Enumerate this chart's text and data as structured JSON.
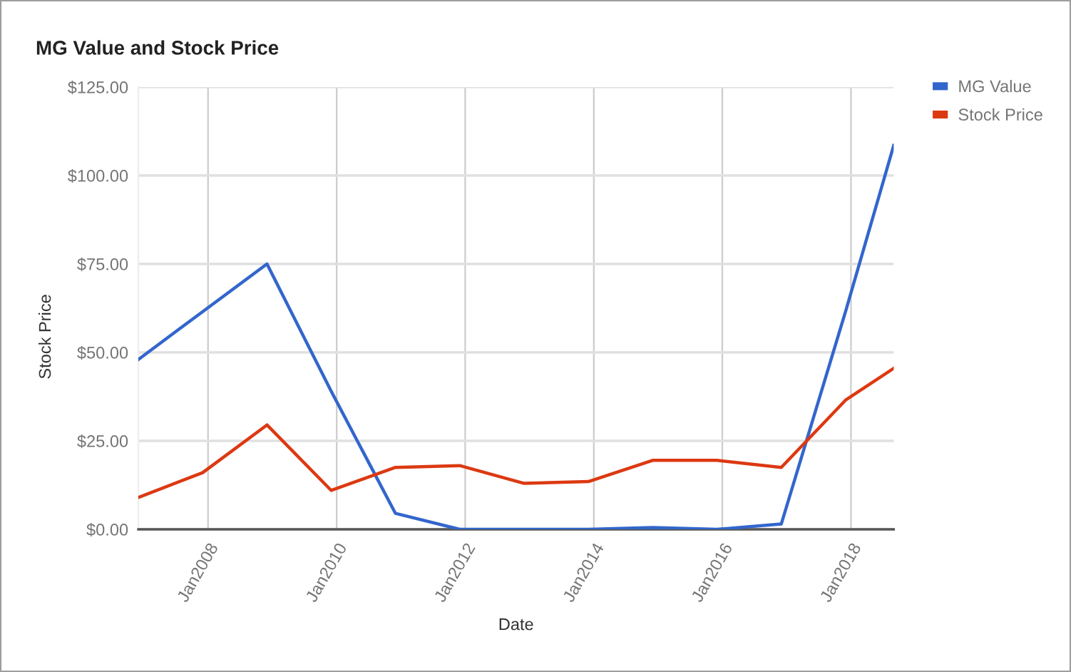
{
  "chart_data": {
    "type": "line",
    "title": "MG Value and Stock Price",
    "xlabel": "Date",
    "ylabel": "Stock Price",
    "x": [
      "2006-12",
      "2007-12",
      "2008-12",
      "2009-12",
      "2010-12",
      "2011-12",
      "2012-12",
      "2013-12",
      "2014-12",
      "2015-12",
      "2016-12",
      "2017-12",
      "2018-09"
    ],
    "series": [
      {
        "name": "MG Value",
        "color": "#3366cc",
        "values": [
          48,
          61.5,
          75,
          39,
          4.5,
          0,
          0,
          0,
          0.5,
          0,
          1.5,
          61.5,
          108.5
        ]
      },
      {
        "name": "Stock Price",
        "color": "#dc3912",
        "values": [
          9,
          16,
          29.5,
          11,
          17.5,
          18,
          13,
          13.5,
          19.5,
          19.5,
          17.5,
          36.5,
          45.5
        ]
      }
    ],
    "xlim": [
      "2006-12",
      "2018-09"
    ],
    "xticks": [
      {
        "value": "2008-01",
        "label": "Jan2008"
      },
      {
        "value": "2010-01",
        "label": "Jan2010"
      },
      {
        "value": "2012-01",
        "label": "Jan2012"
      },
      {
        "value": "2014-01",
        "label": "Jan2014"
      },
      {
        "value": "2016-01",
        "label": "Jan2016"
      },
      {
        "value": "2018-01",
        "label": "Jan2018"
      }
    ],
    "ylim": [
      0,
      125
    ],
    "yticks": [
      {
        "value": 0,
        "label": "$0.00"
      },
      {
        "value": 25,
        "label": "$25.00"
      },
      {
        "value": 50,
        "label": "$50.00"
      },
      {
        "value": 75,
        "label": "$75.00"
      },
      {
        "value": 100,
        "label": "$100.00"
      },
      {
        "value": 125,
        "label": "$125.00"
      }
    ],
    "grid": true,
    "legend": "top right"
  }
}
